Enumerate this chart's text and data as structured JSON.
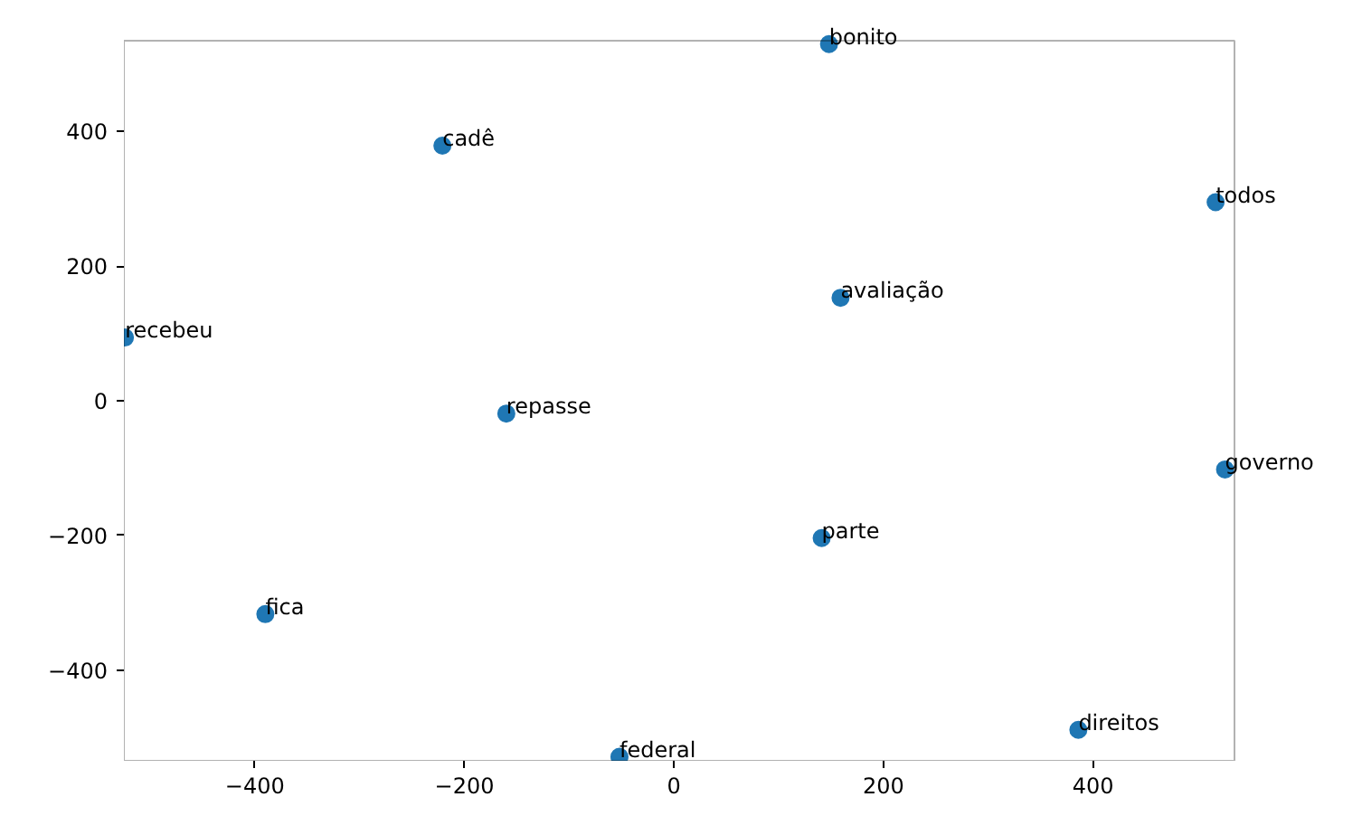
{
  "chart_data": {
    "type": "scatter",
    "x": [
      148,
      -221,
      517,
      159,
      -524,
      -160,
      526,
      141,
      -390,
      386,
      -52
    ],
    "values": [
      530,
      379,
      295,
      153,
      94,
      -19,
      -102,
      -204,
      -317,
      -489,
      -529
    ],
    "color": "#1f77b4",
    "marker": "circle",
    "grid": false,
    "xlim": [
      -525,
      535
    ],
    "ylim": [
      -535,
      535
    ],
    "xticks": [
      -400,
      -200,
      0,
      200,
      400
    ],
    "yticks": [
      -400,
      -200,
      0,
      200,
      400
    ],
    "annotations": [
      {
        "text": "bonito",
        "x": 148,
        "y": 530
      },
      {
        "text": "cadê",
        "x": -221,
        "y": 379
      },
      {
        "text": "todos",
        "x": 517,
        "y": 295
      },
      {
        "text": "avaliação",
        "x": 159,
        "y": 153
      },
      {
        "text": "recebeu",
        "x": -524,
        "y": 94
      },
      {
        "text": "repasse",
        "x": -160,
        "y": -19
      },
      {
        "text": "governo",
        "x": 526,
        "y": -102
      },
      {
        "text": "parte",
        "x": 141,
        "y": -204
      },
      {
        "text": "fica",
        "x": -390,
        "y": -317
      },
      {
        "text": "direitos",
        "x": 386,
        "y": -489
      },
      {
        "text": "federal",
        "x": -52,
        "y": -529
      }
    ]
  }
}
